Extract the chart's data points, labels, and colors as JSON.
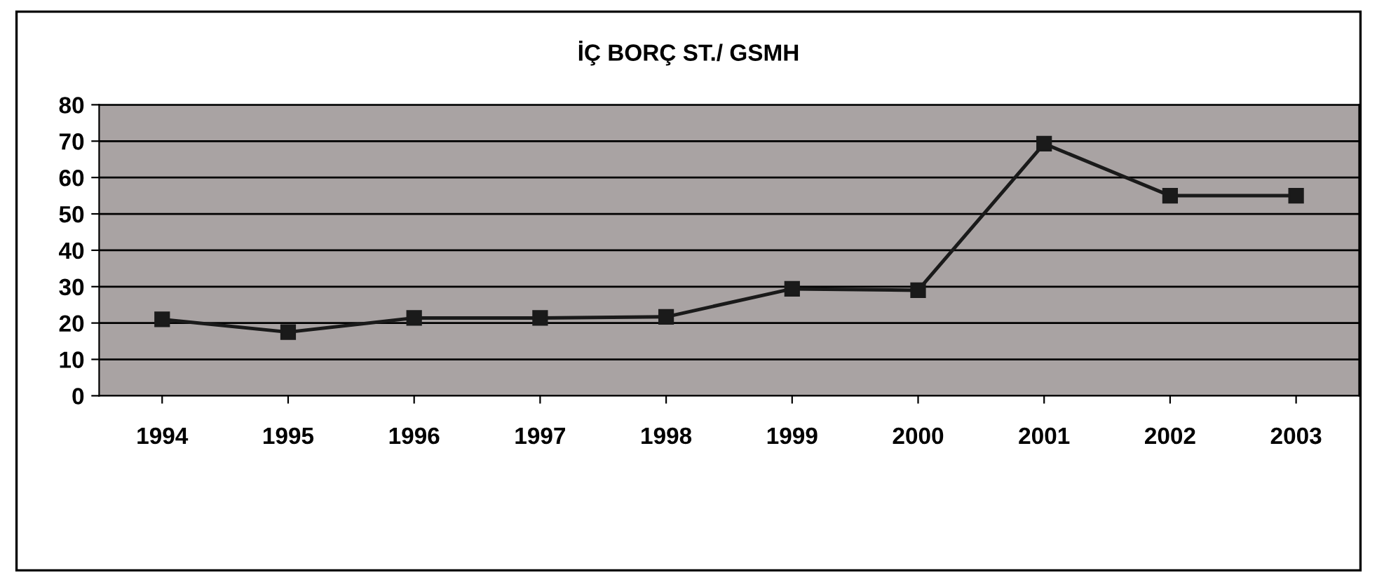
{
  "chart_data": {
    "type": "line",
    "title": "İÇ BORÇ ST./ GSMH",
    "categories": [
      "1994",
      "1995",
      "1996",
      "1997",
      "1998",
      "1999",
      "2000",
      "2001",
      "2002",
      "2003"
    ],
    "series": [
      {
        "color": "#1a1a1a",
        "values": [
          21,
          17.5,
          21.4,
          21.4,
          21.7,
          29.4,
          29,
          69.3,
          55,
          55
        ]
      }
    ],
    "ylim": [
      0,
      80
    ],
    "yticks": [
      0,
      10,
      20,
      30,
      40,
      50,
      60,
      70,
      80
    ],
    "grid": "y",
    "legend": false,
    "marker": "square",
    "line_style": "solid"
  }
}
